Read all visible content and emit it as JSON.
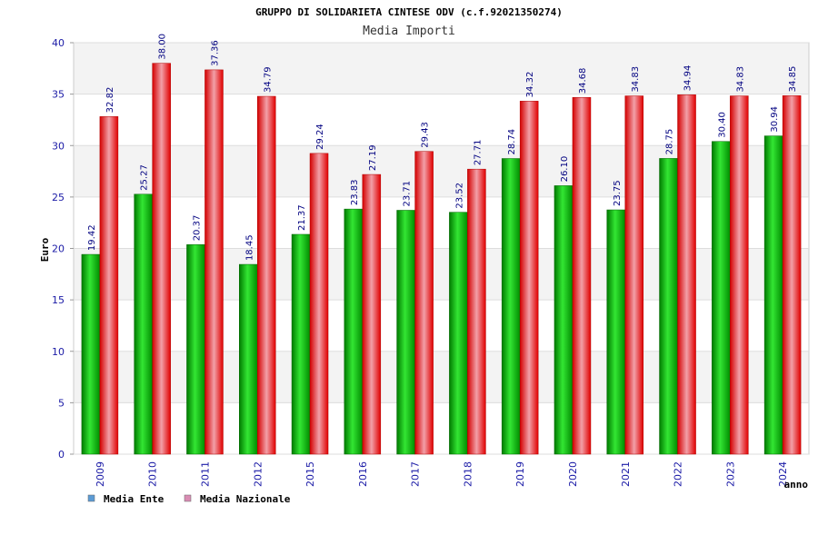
{
  "chart_data": {
    "type": "bar",
    "title": "GRUPPO DI SOLIDARIETA CINTESE ODV (c.f.92021350274)",
    "subtitle": "Media Importi",
    "ylabel": "Euro",
    "xlabel": "anno",
    "ylim": [
      0,
      40
    ],
    "yticks": [
      0,
      5,
      10,
      15,
      20,
      25,
      30,
      35,
      40
    ],
    "grid": true,
    "legend_position": "bottom-left",
    "categories": [
      "2009",
      "2010",
      "2011",
      "2012",
      "2015",
      "2016",
      "2017",
      "2018",
      "2019",
      "2020",
      "2021",
      "2022",
      "2023",
      "2024"
    ],
    "series": [
      {
        "name": "Media Ente",
        "color": "#00b000",
        "legend_color": "#5b9bd5",
        "values": [
          19.42,
          25.27,
          20.37,
          18.45,
          21.37,
          23.83,
          23.71,
          23.52,
          28.74,
          26.1,
          23.75,
          28.75,
          30.4,
          30.94
        ],
        "labels": [
          "19.42",
          "25.27",
          "20.37",
          "18.45",
          "21.37",
          "23.83",
          "23.71",
          "23.52",
          "28.74",
          "26.10",
          "23.75",
          "28.75",
          "30.40",
          "30.94"
        ]
      },
      {
        "name": "Media Nazionale",
        "color": "#ee1c24",
        "legend_color": "#d98cb3",
        "values": [
          32.82,
          38.0,
          37.36,
          34.79,
          29.24,
          27.19,
          29.43,
          27.71,
          34.32,
          34.68,
          34.83,
          34.94,
          34.83,
          34.85
        ],
        "labels": [
          "32.82",
          "38.00",
          "37.36",
          "34.79",
          "29.24",
          "27.19",
          "29.43",
          "27.71",
          "34.32",
          "34.68",
          "34.83",
          "34.94",
          "34.83",
          "34.85"
        ]
      }
    ]
  }
}
